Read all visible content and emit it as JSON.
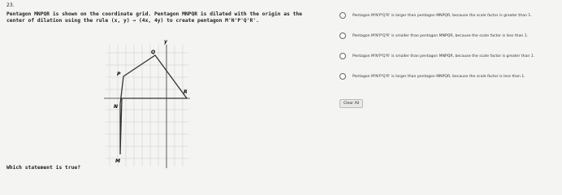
{
  "question": {
    "number": "23.",
    "text": "Pentagon MNPQR is shown on the coordinate grid. Pentagon MNPQR is dilated with the origin as the center of dilation using the rule (x, y) → (4x, 4y) to create pentagon M'N'P'Q'R'.",
    "prompt": "Which statement is true?"
  },
  "graph": {
    "axis_label": "y",
    "points": [
      "Q",
      "P",
      "R",
      "N",
      "M"
    ]
  },
  "options": [
    "Pentagon M'N'P'Q'R' is larger than pentagon MNPQR, because the scale factor is greater than 1.",
    "Pentagon M'N'P'Q'R' is smaller than pentagon MNPQR, because the scale factor is less than 1.",
    "Pentagon M'N'P'Q'R' is smaller than pentagon MNPQR, because the scale factor is greater than 1.",
    "Pentagon M'N'P'Q'R' is larger than pentagon MNPQR, because the scale factor is less than 1."
  ],
  "clear_button": "Clear All"
}
